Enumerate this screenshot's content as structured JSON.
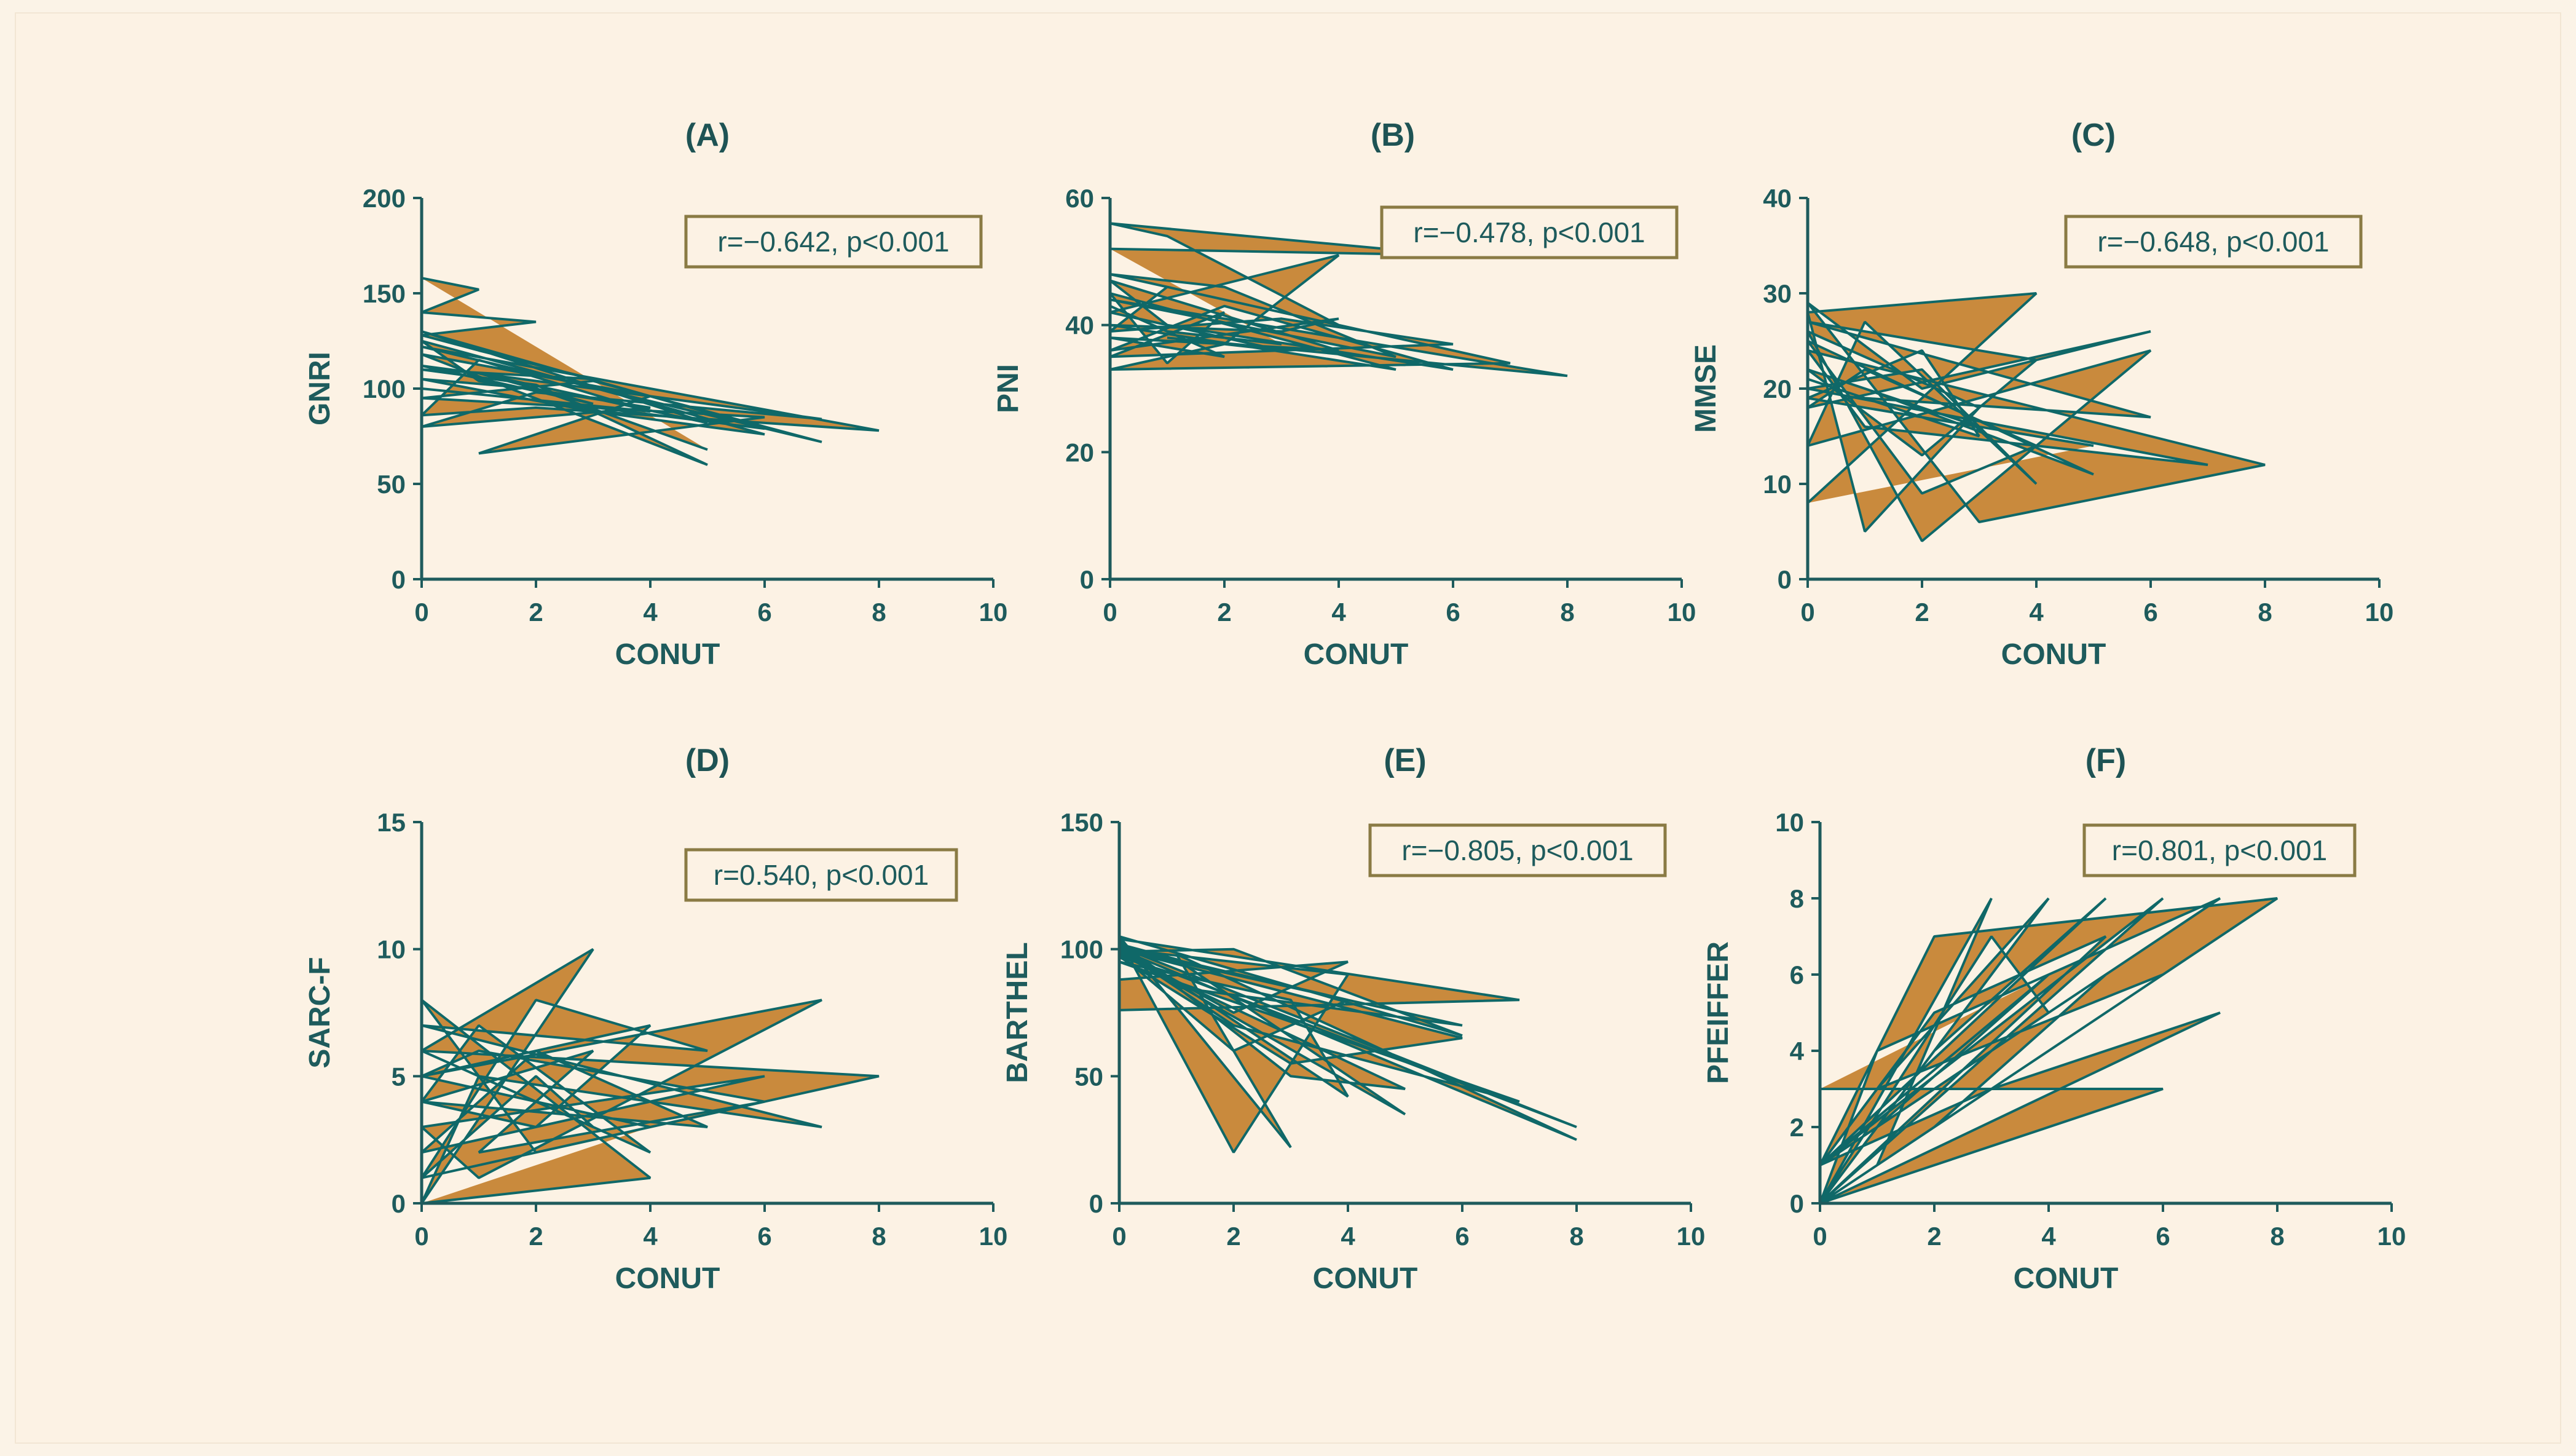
{
  "colors": {
    "background": "#fcf2e4",
    "fill": "#c98a3d",
    "line": "#0f6868",
    "axis": "#1e5b5c",
    "annotation_border": "#8a7b44"
  },
  "chart_data": [
    {
      "type": "area",
      "panel": "(A)",
      "xlabel": "CONUT",
      "ylabel": "GNRI",
      "annotation": "r=−0.642, p<0.001",
      "xlim": [
        0,
        10
      ],
      "ylim": [
        0,
        200
      ],
      "xticks": [
        0,
        2,
        4,
        6,
        8,
        10
      ],
      "yticks": [
        0,
        50,
        100,
        150,
        200
      ],
      "x": [
        0,
        1,
        0,
        2,
        0,
        1,
        3,
        0,
        2,
        5,
        0,
        4,
        1,
        6,
        0,
        3,
        7,
        0,
        8,
        2,
        0,
        1,
        4,
        0,
        2,
        6,
        0,
        5,
        1,
        3,
        0,
        7,
        2,
        0,
        4,
        1,
        0,
        6,
        3,
        0,
        2,
        5
      ],
      "y": [
        158,
        152,
        140,
        135,
        128,
        120,
        105,
        110,
        102,
        60,
        118,
        96,
        66,
        85,
        95,
        104,
        72,
        122,
        78,
        90,
        86,
        115,
        88,
        100,
        94,
        79,
        130,
        82,
        108,
        92,
        112,
        84,
        98,
        80,
        90,
        104,
        125,
        76,
        88,
        105,
        100,
        68
      ]
    },
    {
      "type": "area",
      "panel": "(B)",
      "xlabel": "CONUT",
      "ylabel": "PNI",
      "annotation": "r=−0.478, p<0.001",
      "xlim": [
        0,
        10
      ],
      "ylim": [
        0,
        60
      ],
      "xticks": [
        0,
        2,
        4,
        6,
        8,
        10
      ],
      "yticks": [
        0,
        20,
        40,
        60
      ],
      "x": [
        0,
        6,
        0,
        1,
        4,
        0,
        2,
        5,
        0,
        8,
        1,
        3,
        0,
        4,
        2,
        0,
        7,
        1,
        0,
        3,
        6,
        0,
        2,
        1,
        0,
        5,
        0,
        3,
        4,
        0,
        2,
        6,
        1,
        0,
        4,
        0,
        2,
        0,
        1,
        3
      ],
      "y": [
        52,
        51,
        56,
        54,
        40,
        48,
        46,
        35,
        44,
        32,
        38,
        36,
        42,
        51,
        37,
        33,
        34,
        46,
        39,
        41,
        37,
        35,
        42,
        34,
        45,
        33,
        40,
        39,
        41,
        36,
        43,
        33,
        40,
        47,
        36,
        38,
        35,
        43,
        39,
        37
      ]
    },
    {
      "type": "area",
      "panel": "(C)",
      "xlabel": "CONUT",
      "ylabel": "MMSE",
      "annotation": "r=−0.648, p<0.001",
      "xlim": [
        0,
        10
      ],
      "ylim": [
        0,
        40
      ],
      "xticks": [
        0,
        2,
        4,
        6,
        8,
        10
      ],
      "yticks": [
        0,
        10,
        20,
        30,
        40
      ],
      "x": [
        0,
        4,
        0,
        1,
        3,
        0,
        2,
        6,
        0,
        1,
        4,
        2,
        0,
        7,
        1,
        0,
        8,
        3,
        0,
        2,
        6,
        0,
        1,
        4,
        2,
        0,
        5,
        1,
        3,
        0,
        2,
        4,
        0,
        6,
        1,
        0,
        3,
        2,
        0,
        5
      ],
      "y": [
        8,
        30,
        28,
        5,
        18,
        26,
        4,
        24,
        14,
        27,
        10,
        22,
        20,
        12,
        16,
        24,
        12,
        6,
        29,
        20,
        26,
        18,
        22,
        14,
        9,
        25,
        11,
        20,
        16,
        22,
        13,
        23,
        27,
        17,
        19,
        21,
        15,
        24,
        19,
        14
      ]
    },
    {
      "type": "area",
      "panel": "(D)",
      "xlabel": "CONUT",
      "ylabel": "SARC-F",
      "annotation": "r=0.540, p<0.001",
      "xlim": [
        0,
        10
      ],
      "ylim": [
        0,
        15
      ],
      "xticks": [
        0,
        2,
        4,
        6,
        8,
        10
      ],
      "yticks": [
        0,
        5,
        10,
        15
      ],
      "x": [
        0,
        4,
        0,
        2,
        8,
        0,
        3,
        0,
        1,
        7,
        0,
        5,
        2,
        0,
        6,
        1,
        3,
        0,
        2,
        4,
        0,
        7,
        1,
        0,
        3,
        6,
        0,
        2,
        5,
        0,
        1,
        4,
        0,
        3,
        2,
        0,
        6,
        1,
        0,
        4
      ],
      "y": [
        0,
        1,
        8,
        2,
        5,
        6,
        10,
        0,
        5,
        3,
        7,
        6,
        8,
        1,
        4,
        2,
        6,
        4,
        3,
        7,
        5,
        8,
        1,
        3,
        4,
        5,
        2,
        6,
        3,
        4,
        7,
        2,
        6,
        3,
        5,
        1,
        4,
        6,
        5,
        3
      ]
    },
    {
      "type": "area",
      "panel": "(E)",
      "xlabel": "CONUT",
      "ylabel": "BARTHEL",
      "annotation": "r=−0.805, p<0.001",
      "xlim": [
        0,
        10
      ],
      "ylim": [
        0,
        150
      ],
      "xticks": [
        0,
        2,
        4,
        6,
        8,
        10
      ],
      "yticks": [
        0,
        50,
        100,
        150
      ],
      "x": [
        0,
        7,
        0,
        2,
        4,
        0,
        8,
        1,
        3,
        0,
        6,
        2,
        0,
        5,
        1,
        0,
        4,
        3,
        0,
        7,
        2,
        0,
        6,
        1,
        0,
        3,
        5,
        0,
        2,
        4,
        0,
        8,
        1,
        0,
        3,
        6,
        0,
        2,
        4,
        0
      ],
      "y": [
        76,
        80,
        104,
        20,
        90,
        100,
        25,
        98,
        22,
        105,
        66,
        100,
        99,
        35,
        96,
        102,
        42,
        80,
        95,
        40,
        70,
        100,
        70,
        85,
        103,
        50,
        45,
        98,
        60,
        80,
        101,
        30,
        90,
        97,
        55,
        65,
        100,
        75,
        95,
        88
      ]
    },
    {
      "type": "area",
      "panel": "(F)",
      "xlabel": "CONUT",
      "ylabel": "PFEIFFER",
      "annotation": "r=0.801, p<0.001",
      "xlim": [
        0,
        10
      ],
      "ylim": [
        0,
        10
      ],
      "xticks": [
        0,
        2,
        4,
        6,
        8,
        10
      ],
      "yticks": [
        0,
        2,
        4,
        6,
        8,
        10
      ],
      "x": [
        0,
        6,
        0,
        3,
        1,
        0,
        8,
        2,
        0,
        4,
        1,
        0,
        7,
        3,
        0,
        5,
        2,
        0,
        6,
        1,
        0,
        4,
        3,
        0,
        2,
        5,
        0,
        1,
        4,
        0,
        3,
        6,
        0,
        2,
        5,
        0,
        1,
        7,
        0,
        4
      ],
      "y": [
        3,
        3,
        0,
        8,
        1,
        0,
        8,
        7,
        1,
        6,
        2,
        0,
        5,
        3,
        1,
        8,
        4,
        0,
        6,
        3,
        1,
        5,
        7,
        0,
        2,
        6,
        1,
        3,
        8,
        0,
        4,
        8,
        1,
        5,
        7,
        0,
        4,
        8,
        1,
        6
      ]
    }
  ]
}
